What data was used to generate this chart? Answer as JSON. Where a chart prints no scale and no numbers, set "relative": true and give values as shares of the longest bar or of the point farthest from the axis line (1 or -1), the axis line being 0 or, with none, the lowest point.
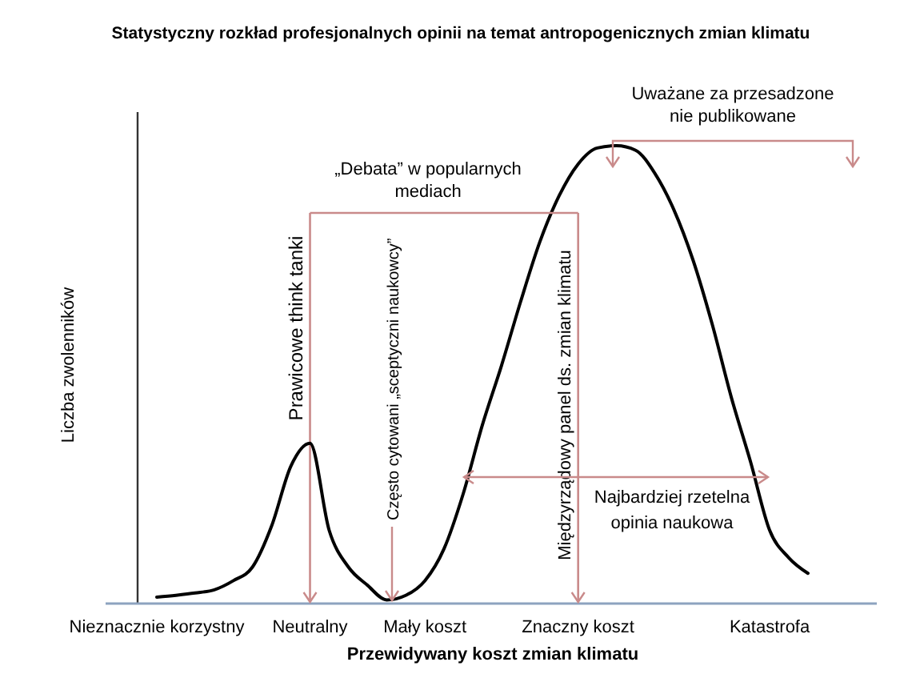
{
  "chart_data": {
    "type": "line",
    "title": "Statystyczny rozkład profesjonalnych opinii na temat antropogenicznych zmian klimatu",
    "xlabel": "Przewidywany koszt zmian klimatu",
    "ylabel": "Liczba zwolenników",
    "relative": true,
    "categories": [
      "Nieznacznie korzystny",
      null,
      null,
      null,
      null,
      null,
      null,
      null,
      "Neutralny",
      null,
      null,
      null,
      null,
      null,
      "Mały koszt",
      null,
      null,
      null,
      null,
      null,
      null,
      null,
      "Znaczny koszt",
      null,
      null,
      null,
      null,
      null,
      null,
      null,
      null,
      null,
      "Katastrofa",
      null,
      null
    ],
    "series": [
      {
        "color": "#000000",
        "values": [
          0.014,
          0.018,
          0.023,
          0.03,
          0.05,
          0.08,
          0.17,
          0.3,
          0.35,
          0.16,
          0.08,
          0.04,
          0.008,
          0.018,
          0.05,
          0.12,
          0.24,
          0.39,
          0.52,
          0.66,
          0.79,
          0.89,
          0.96,
          0.995,
          1.0,
          0.99,
          0.94,
          0.86,
          0.75,
          0.61,
          0.45,
          0.31,
          0.16,
          0.1,
          0.066
        ]
      }
    ],
    "tick_labels": "x",
    "marker": "none",
    "line_style": "solid",
    "ref_lines": [
      {
        "axis": "x",
        "value": "Neutralny",
        "label": "Prawicowe think tanki",
        "color": "#c98a8a"
      },
      {
        "axis": "x",
        "value": "Znaczny koszt",
        "label": "Międzyrządowy panel ds. zmian klimatu",
        "color": "#c98a8a"
      }
    ],
    "annotations": [
      "„Debata” w popularnych mediach",
      "Często cytowani „sceptyczni naukowcy”",
      "Najbardziej rzetelna opinia naukowa",
      "Uważane za przesadzone nie publikowane"
    ]
  }
}
